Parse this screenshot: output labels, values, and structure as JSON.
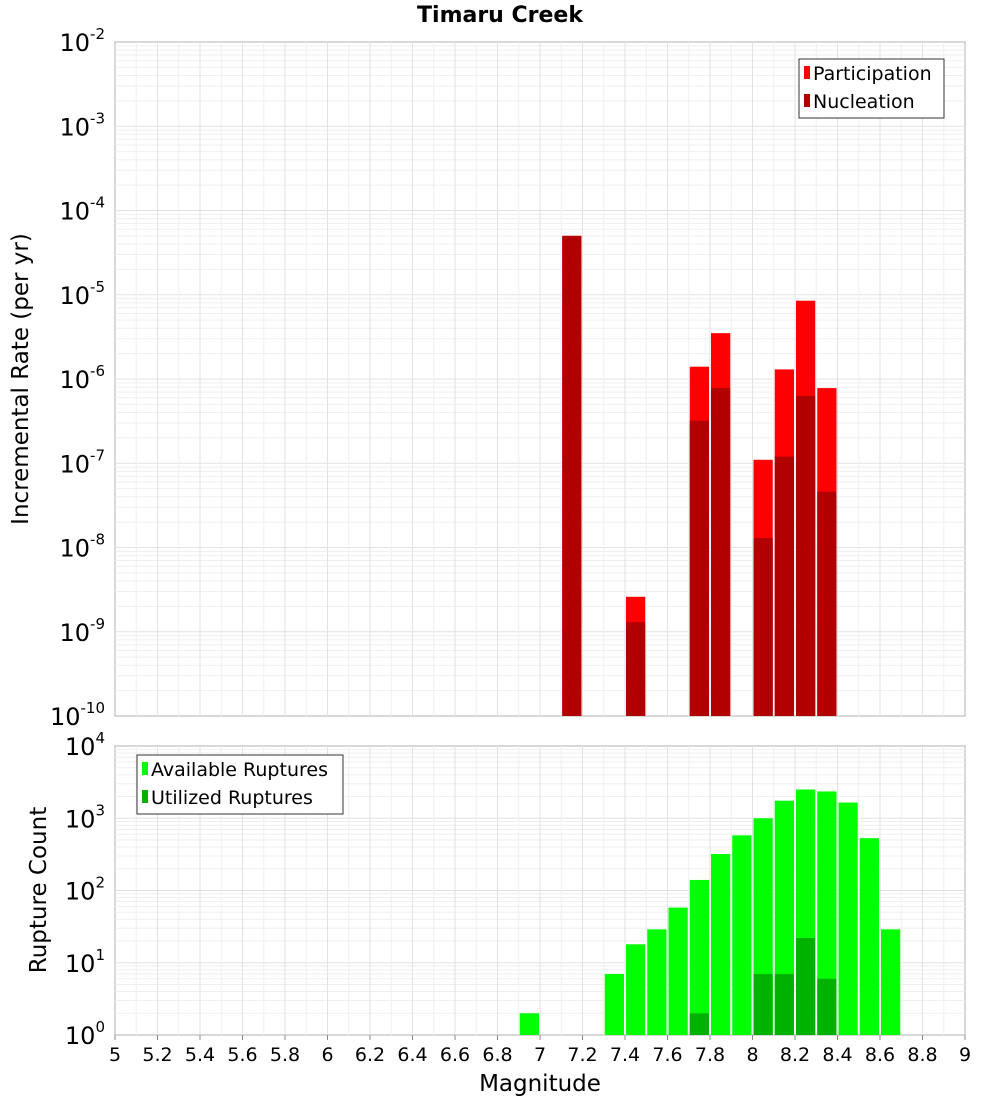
{
  "chart_data": [
    {
      "type": "bar",
      "title": "Timaru Creek",
      "xlabel": "",
      "ylabel": "Incremental Rate (per yr)",
      "yscale": "log",
      "xlim": [
        5,
        9
      ],
      "ylim": [
        1e-10,
        0.01
      ],
      "grid": true,
      "legend_position": "top-right",
      "y_ticks": [
        {
          "base": "10",
          "exp": "-10"
        },
        {
          "base": "10",
          "exp": "-9"
        },
        {
          "base": "10",
          "exp": "-8"
        },
        {
          "base": "10",
          "exp": "-7"
        },
        {
          "base": "10",
          "exp": "-6"
        },
        {
          "base": "10",
          "exp": "-5"
        },
        {
          "base": "10",
          "exp": "-4"
        },
        {
          "base": "10",
          "exp": "-3"
        },
        {
          "base": "10",
          "exp": "-2"
        }
      ],
      "series": [
        {
          "name": "Participation",
          "color": "#ff0000",
          "points": [
            {
              "x": 7.15,
              "y": 5e-05
            },
            {
              "x": 7.45,
              "y": 2.6e-09
            },
            {
              "x": 7.75,
              "y": 1.4e-06
            },
            {
              "x": 7.85,
              "y": 3.5e-06
            },
            {
              "x": 8.05,
              "y": 1.1e-07
            },
            {
              "x": 8.15,
              "y": 1.3e-06
            },
            {
              "x": 8.25,
              "y": 8.5e-06
            },
            {
              "x": 8.35,
              "y": 7.8e-07
            }
          ]
        },
        {
          "name": "Nucleation",
          "color": "#b20000",
          "points": [
            {
              "x": 7.15,
              "y": 5e-05
            },
            {
              "x": 7.45,
              "y": 1.3e-09
            },
            {
              "x": 7.75,
              "y": 3.2e-07
            },
            {
              "x": 7.85,
              "y": 7.8e-07
            },
            {
              "x": 8.05,
              "y": 1.3e-08
            },
            {
              "x": 8.15,
              "y": 1.2e-07
            },
            {
              "x": 8.25,
              "y": 6.3e-07
            },
            {
              "x": 8.35,
              "y": 4.6e-08
            }
          ]
        }
      ]
    },
    {
      "type": "bar",
      "title": "",
      "xlabel": "Magnitude",
      "ylabel": "Rupture Count",
      "yscale": "log",
      "xlim": [
        5,
        9
      ],
      "ylim": [
        1,
        10000
      ],
      "grid": true,
      "legend_position": "top-left",
      "x_ticks": [
        "5",
        "5.2",
        "5.4",
        "5.6",
        "5.8",
        "6",
        "6.2",
        "6.4",
        "6.6",
        "6.8",
        "7",
        "7.2",
        "7.4",
        "7.6",
        "7.8",
        "8",
        "8.2",
        "8.4",
        "8.6",
        "8.8",
        "9"
      ],
      "y_ticks": [
        {
          "base": "10",
          "exp": "0"
        },
        {
          "base": "10",
          "exp": "1"
        },
        {
          "base": "10",
          "exp": "2"
        },
        {
          "base": "10",
          "exp": "3"
        },
        {
          "base": "10",
          "exp": "4"
        }
      ],
      "series": [
        {
          "name": "Available Ruptures",
          "color": "#00ff00",
          "points": [
            {
              "x": 6.95,
              "y": 2
            },
            {
              "x": 7.15,
              "y": 1
            },
            {
              "x": 7.25,
              "y": 1
            },
            {
              "x": 7.35,
              "y": 7
            },
            {
              "x": 7.45,
              "y": 18
            },
            {
              "x": 7.55,
              "y": 29
            },
            {
              "x": 7.65,
              "y": 58
            },
            {
              "x": 7.75,
              "y": 140
            },
            {
              "x": 7.85,
              "y": 320
            },
            {
              "x": 7.95,
              "y": 580
            },
            {
              "x": 8.05,
              "y": 1000
            },
            {
              "x": 8.15,
              "y": 1750
            },
            {
              "x": 8.25,
              "y": 2500
            },
            {
              "x": 8.35,
              "y": 2350
            },
            {
              "x": 8.45,
              "y": 1650
            },
            {
              "x": 8.55,
              "y": 530
            },
            {
              "x": 8.65,
              "y": 29
            }
          ]
        },
        {
          "name": "Utilized Ruptures",
          "color": "#00b200",
          "points": [
            {
              "x": 7.15,
              "y": 1
            },
            {
              "x": 7.45,
              "y": 1
            },
            {
              "x": 7.55,
              "y": 1
            },
            {
              "x": 7.75,
              "y": 2
            },
            {
              "x": 7.85,
              "y": 1
            },
            {
              "x": 7.95,
              "y": 1
            },
            {
              "x": 8.05,
              "y": 7
            },
            {
              "x": 8.15,
              "y": 7
            },
            {
              "x": 8.25,
              "y": 22
            },
            {
              "x": 8.35,
              "y": 6
            }
          ]
        }
      ]
    }
  ]
}
